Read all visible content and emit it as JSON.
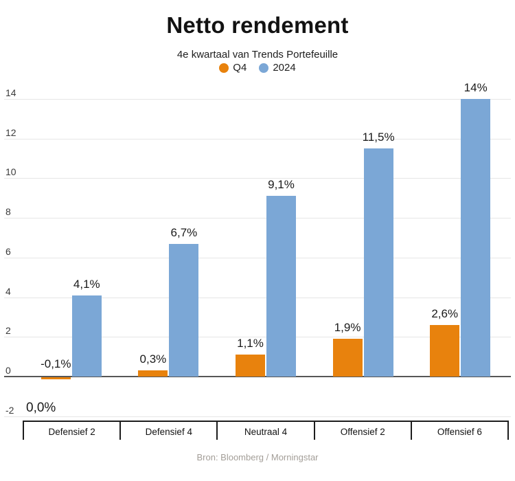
{
  "chart_data": {
    "type": "bar",
    "title": "Netto rendement",
    "subtitle": "4e kwartaal van Trends Portefeuille",
    "source": "Bron: Bloomberg / Morningstar",
    "categories": [
      "Defensief 2",
      "Defensief 4",
      "Neutraal 4",
      "Offensief 2",
      "Offensief 6"
    ],
    "series": [
      {
        "name": "Q4",
        "color": "#e8820d",
        "values": [
          -0.1,
          0.3,
          1.1,
          1.9,
          2.6
        ],
        "labels": [
          "-0,1%",
          "0,3%",
          "1,1%",
          "1,9%",
          "2,6%"
        ]
      },
      {
        "name": "2024",
        "color": "#7ba7d6",
        "values": [
          4.1,
          6.7,
          9.1,
          11.5,
          14
        ],
        "labels": [
          "4,1%",
          "6,7%",
          "9,1%",
          "11,5%",
          "14%"
        ]
      }
    ],
    "yticks": [
      14,
      12,
      10,
      8,
      6,
      4,
      2,
      0,
      -2
    ],
    "ylim": [
      -2.3,
      14
    ],
    "grid": true,
    "legend_position": "top",
    "extra_label": "0,0%",
    "grid_color": "#e6e6e6",
    "zero_line_color": "#565656",
    "axis_color": "#1c1c1c"
  }
}
